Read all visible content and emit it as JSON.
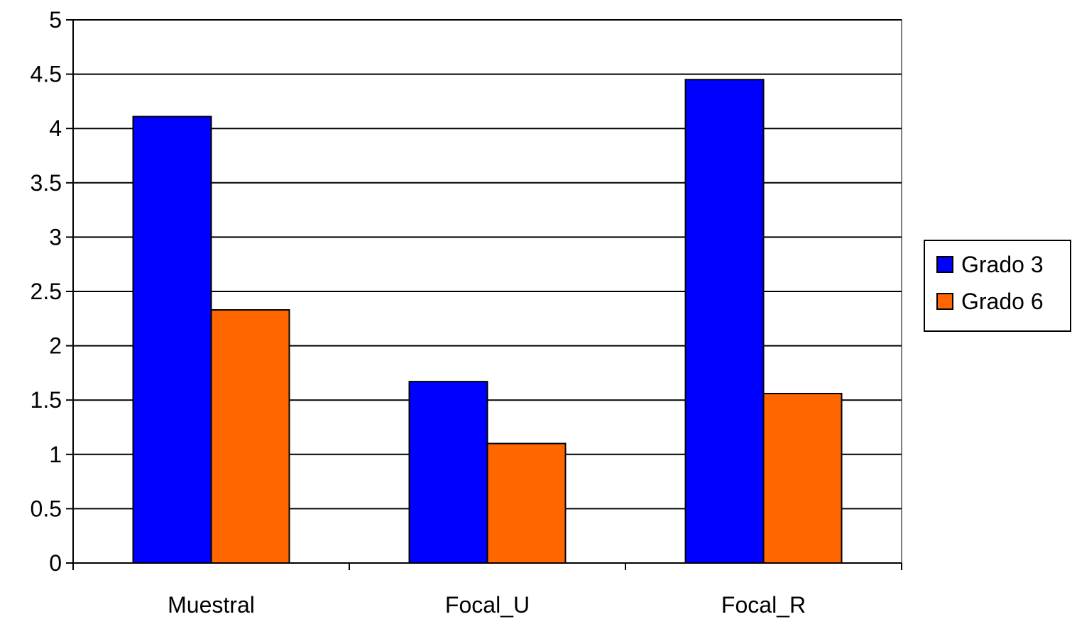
{
  "chart_data": {
    "type": "bar",
    "title": "",
    "xlabel": "",
    "ylabel": "",
    "categories": [
      "Muestral",
      "Focal_U",
      "Focal_R"
    ],
    "series": [
      {
        "name": "Grado 3",
        "color": "#0000FF",
        "values": [
          4.11,
          1.67,
          4.45
        ]
      },
      {
        "name": "Grado 6",
        "color": "#FF6600",
        "values": [
          2.33,
          1.1,
          1.56
        ]
      }
    ],
    "ylim": [
      0,
      5
    ],
    "yticks": [
      "0",
      "0.5",
      "1",
      "1.5",
      "2",
      "2.5",
      "3",
      "3.5",
      "4",
      "4.5",
      "5"
    ],
    "grid": true,
    "legend_position": "right"
  }
}
